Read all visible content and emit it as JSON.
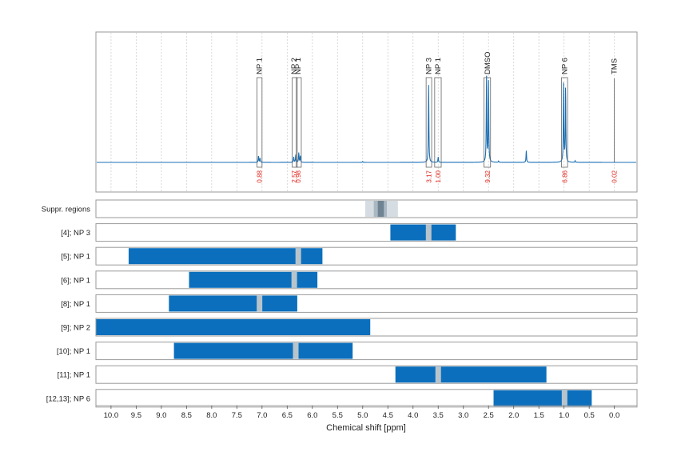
{
  "chart_data": {
    "type": "nmr_spectrum_with_range_tracks",
    "xlabel": "Chemical shift [ppm]",
    "x_reversed": true,
    "xlim": [
      10.3,
      -0.45
    ],
    "xticks": [
      10.0,
      9.5,
      9.0,
      8.5,
      8.0,
      7.5,
      7.0,
      6.5,
      6.0,
      5.5,
      5.0,
      4.5,
      4.0,
      3.5,
      3.0,
      2.5,
      2.0,
      1.5,
      1.0,
      0.5,
      0.0
    ],
    "xtick_labels": [
      "10.0",
      "9.5",
      "9.0",
      "8.5",
      "8.0",
      "7.5",
      "7.0",
      "6.5",
      "6.0",
      "5.5",
      "5.0",
      "4.5",
      "4.0",
      "3.5",
      "3.0",
      "2.5",
      "2.0",
      "1.5",
      "1.0",
      "0.5",
      "0.0"
    ],
    "grid": "vertical dotted",
    "colors": {
      "spectrum": "#1a6fb4",
      "range_bar": "#0b6fbd",
      "peak_marker": "#b8c4cc",
      "integral_text": "#e0261c",
      "frame": "#9a9a9a",
      "suppr_light": "#d5dde3",
      "suppr_mid": "#a9b8c3",
      "suppr_dark": "#6f8392"
    },
    "spectrum_peaks": [
      {
        "ppm": 7.07,
        "height": 0.06
      },
      {
        "ppm": 7.04,
        "height": 0.04
      },
      {
        "ppm": 6.37,
        "height": 0.05
      },
      {
        "ppm": 6.33,
        "height": 0.07
      },
      {
        "ppm": 6.27,
        "height": 0.09
      },
      {
        "ppm": 6.24,
        "height": 0.06
      },
      {
        "ppm": 3.69,
        "height": 0.72
      },
      {
        "ppm": 3.5,
        "height": 0.05
      },
      {
        "ppm": 2.54,
        "height": 0.8
      },
      {
        "ppm": 2.5,
        "height": 0.75
      },
      {
        "ppm": 1.75,
        "height": 0.11
      },
      {
        "ppm": 1.01,
        "height": 0.74
      },
      {
        "ppm": 0.97,
        "height": 0.7
      },
      {
        "ppm": 0.78,
        "height": 0.015
      },
      {
        "ppm": 2.3,
        "height": 0.012
      },
      {
        "ppm": 5.0,
        "height": 0.008
      }
    ],
    "annotations": [
      {
        "label": "NP 1",
        "ppm": 7.05,
        "integral": "0.88",
        "box_start": 7.1,
        "box_end": 7.0
      },
      {
        "label": "NP 2",
        "ppm": 6.36,
        "integral": "2.57",
        "box_start": 6.4,
        "box_end": 6.3
      },
      {
        "label": "NP 1",
        "ppm": 6.28,
        "integral": "0.98",
        "box_start": 6.32,
        "box_end": 6.22
      },
      {
        "label": "NP 3",
        "ppm": 3.69,
        "integral": "3.17",
        "box_start": 3.74,
        "box_end": 3.63
      },
      {
        "label": "NP 1",
        "ppm": 3.5,
        "integral": "1.00",
        "box_start": 3.57,
        "box_end": 3.44
      },
      {
        "label": "DMSO",
        "ppm": 2.52,
        "integral": "9.32",
        "box_start": 2.59,
        "box_end": 2.46
      },
      {
        "label": "NP 6",
        "ppm": 0.99,
        "integral": "6.86",
        "box_start": 1.05,
        "box_end": 0.93
      },
      {
        "label": "TMS",
        "ppm": 0.0,
        "integral": "0.02",
        "box_start": 0.02,
        "box_end": -0.02
      }
    ],
    "suppressed_regions": {
      "label": "Suppr. regions",
      "bands": [
        {
          "start": 4.95,
          "end": 4.3,
          "shade": "light"
        },
        {
          "start": 4.78,
          "end": 4.52,
          "shade": "mid"
        },
        {
          "start": 4.7,
          "end": 4.58,
          "shade": "dark"
        }
      ]
    },
    "series": [
      {
        "name": "[4]; NP 3",
        "range": [
          4.45,
          3.15
        ],
        "marker": 3.69
      },
      {
        "name": "[5]; NP 1",
        "range": [
          9.65,
          5.8
        ],
        "marker": 6.28
      },
      {
        "name": "[6]; NP 1",
        "range": [
          8.45,
          5.9
        ],
        "marker": 6.36
      },
      {
        "name": "[8]; NP 1",
        "range": [
          8.85,
          6.3
        ],
        "marker": 7.05
      },
      {
        "name": "[9]; NP 2",
        "range": [
          10.3,
          4.85
        ],
        "marker": null
      },
      {
        "name": "[10]; NP 1",
        "range": [
          8.75,
          5.2
        ],
        "marker": 6.33
      },
      {
        "name": "[11]; NP 1",
        "range": [
          4.35,
          1.35
        ],
        "marker": 3.5
      },
      {
        "name": "[12,13]; NP 6",
        "range": [
          2.4,
          0.45
        ],
        "marker": 0.99
      }
    ]
  }
}
